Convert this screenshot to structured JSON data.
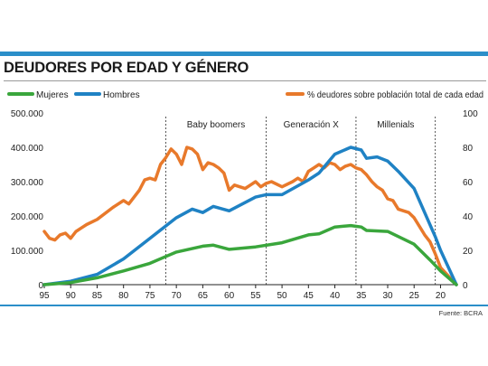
{
  "header": {
    "title": "DEUDORES POR EDAD Y GÉNERO"
  },
  "footer": {
    "source": "Fuente: BCRA"
  },
  "colors": {
    "mujeres": "#3aa63c",
    "hombres": "#1f82c4",
    "pct": "#e8792b",
    "accent": "#2b8fc9"
  },
  "chart_data": {
    "type": "line",
    "xlabel": "",
    "ylabel": "",
    "x_ticks": [
      "95",
      "90",
      "85",
      "80",
      "75",
      "70",
      "65",
      "60",
      "55",
      "50",
      "45",
      "40",
      "35",
      "30",
      "25",
      "20"
    ],
    "x_reversed": true,
    "x_range": [
      95,
      17
    ],
    "ylim": [
      0,
      500000
    ],
    "ylim_right": [
      0,
      100
    ],
    "y_ticks": [
      "0",
      "100.000",
      "200.000",
      "300.000",
      "400.000",
      "500.000"
    ],
    "y_ticks_right": [
      "0",
      "20",
      "40",
      "60",
      "80",
      "100"
    ],
    "grid": false,
    "legend": [
      "Mujeres",
      "Hombres",
      "% deudores sobre población total de cada edad"
    ],
    "eras": [
      {
        "label": "Baby boomers",
        "from": 72,
        "to": 53
      },
      {
        "label": "Generación X",
        "from": 53,
        "to": 36
      },
      {
        "label": "Millenials",
        "from": 36,
        "to": 21
      }
    ],
    "series": [
      {
        "name": "Mujeres",
        "axis": "left",
        "x": [
          95,
          90,
          85,
          80,
          75,
          72,
          70,
          65,
          63,
          60,
          55,
          50,
          45,
          43,
          40,
          37,
          35,
          34,
          30,
          25,
          22,
          20,
          17
        ],
        "values": [
          0,
          6000,
          20000,
          40000,
          62000,
          82000,
          95000,
          112000,
          115000,
          103000,
          110000,
          122000,
          145000,
          148000,
          168000,
          172000,
          168000,
          158000,
          155000,
          118000,
          72000,
          40000,
          0
        ]
      },
      {
        "name": "Hombres",
        "axis": "left",
        "x": [
          95,
          90,
          85,
          80,
          75,
          70,
          67,
          65,
          63,
          60,
          55,
          53,
          50,
          45,
          43,
          40,
          37,
          35,
          34,
          32,
          30,
          28,
          25,
          23,
          21,
          20,
          17
        ],
        "values": [
          0,
          10000,
          30000,
          75000,
          135000,
          195000,
          220000,
          210000,
          228000,
          215000,
          255000,
          262000,
          262000,
          305000,
          325000,
          380000,
          400000,
          392000,
          368000,
          372000,
          360000,
          330000,
          280000,
          210000,
          140000,
          100000,
          0
        ]
      },
      {
        "name": "% deudores sobre población total de cada edad",
        "axis": "right",
        "x": [
          95,
          94,
          93,
          92,
          91,
          90,
          89,
          88,
          87,
          85,
          82,
          80,
          79,
          77,
          76,
          75,
          74,
          73,
          72,
          71,
          70,
          69,
          68,
          67,
          66,
          65,
          64,
          63,
          62,
          61,
          60,
          59,
          58,
          57,
          56,
          55,
          54,
          53,
          52,
          50,
          48,
          47,
          46,
          45,
          44,
          43,
          42,
          41,
          40,
          39,
          38,
          37,
          36,
          35,
          34,
          33,
          32,
          31,
          30,
          29,
          28,
          27,
          26,
          25,
          24,
          23,
          22,
          21,
          20,
          17
        ],
        "values": [
          31,
          27,
          26,
          29,
          30,
          27,
          31,
          33,
          35,
          38,
          45,
          49,
          47,
          55,
          61,
          62,
          61,
          70,
          74,
          79,
          76,
          70,
          80,
          79,
          76,
          67,
          71,
          70,
          68,
          65,
          55,
          58,
          57,
          56,
          58,
          60,
          57,
          59,
          60,
          57,
          60,
          62,
          60,
          66,
          68,
          70,
          68,
          71,
          70,
          67,
          69,
          70,
          68,
          67,
          64,
          60,
          57,
          55,
          50,
          49,
          44,
          43,
          42,
          39,
          34,
          29,
          25,
          18,
          10,
          0
        ]
      }
    ]
  }
}
